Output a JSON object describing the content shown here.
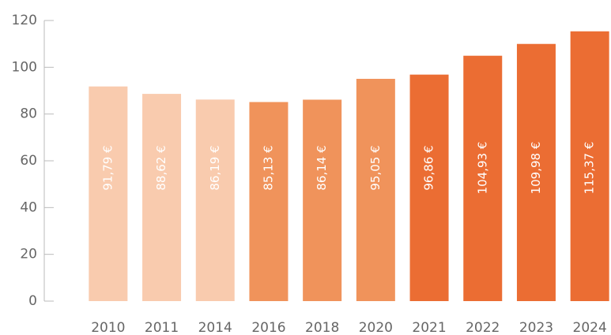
{
  "chart_data": {
    "type": "bar",
    "categories": [
      "2010",
      "2011",
      "2014",
      "2016",
      "2018",
      "2020",
      "2021",
      "2022",
      "2023",
      "2024"
    ],
    "values": [
      91.79,
      88.62,
      86.19,
      85.13,
      86.14,
      95.05,
      96.86,
      104.93,
      109.98,
      115.37
    ],
    "value_labels": [
      "91,79 €",
      "88,62 €",
      "86,19 €",
      "85,13 €",
      "86,14 €",
      "95,05 €",
      "96,86 €",
      "104,93 €",
      "109,98 €",
      "115,37 €"
    ],
    "colors": [
      "#f9cbae",
      "#f9cbae",
      "#f9cbae",
      "#f0935b",
      "#f0935b",
      "#f0935b",
      "#eb6d33",
      "#eb6d33",
      "#eb6d33",
      "#eb6d33"
    ],
    "ylim": [
      0,
      120
    ],
    "yticks": [
      0,
      20,
      40,
      60,
      80,
      100,
      120
    ],
    "grid": false
  }
}
